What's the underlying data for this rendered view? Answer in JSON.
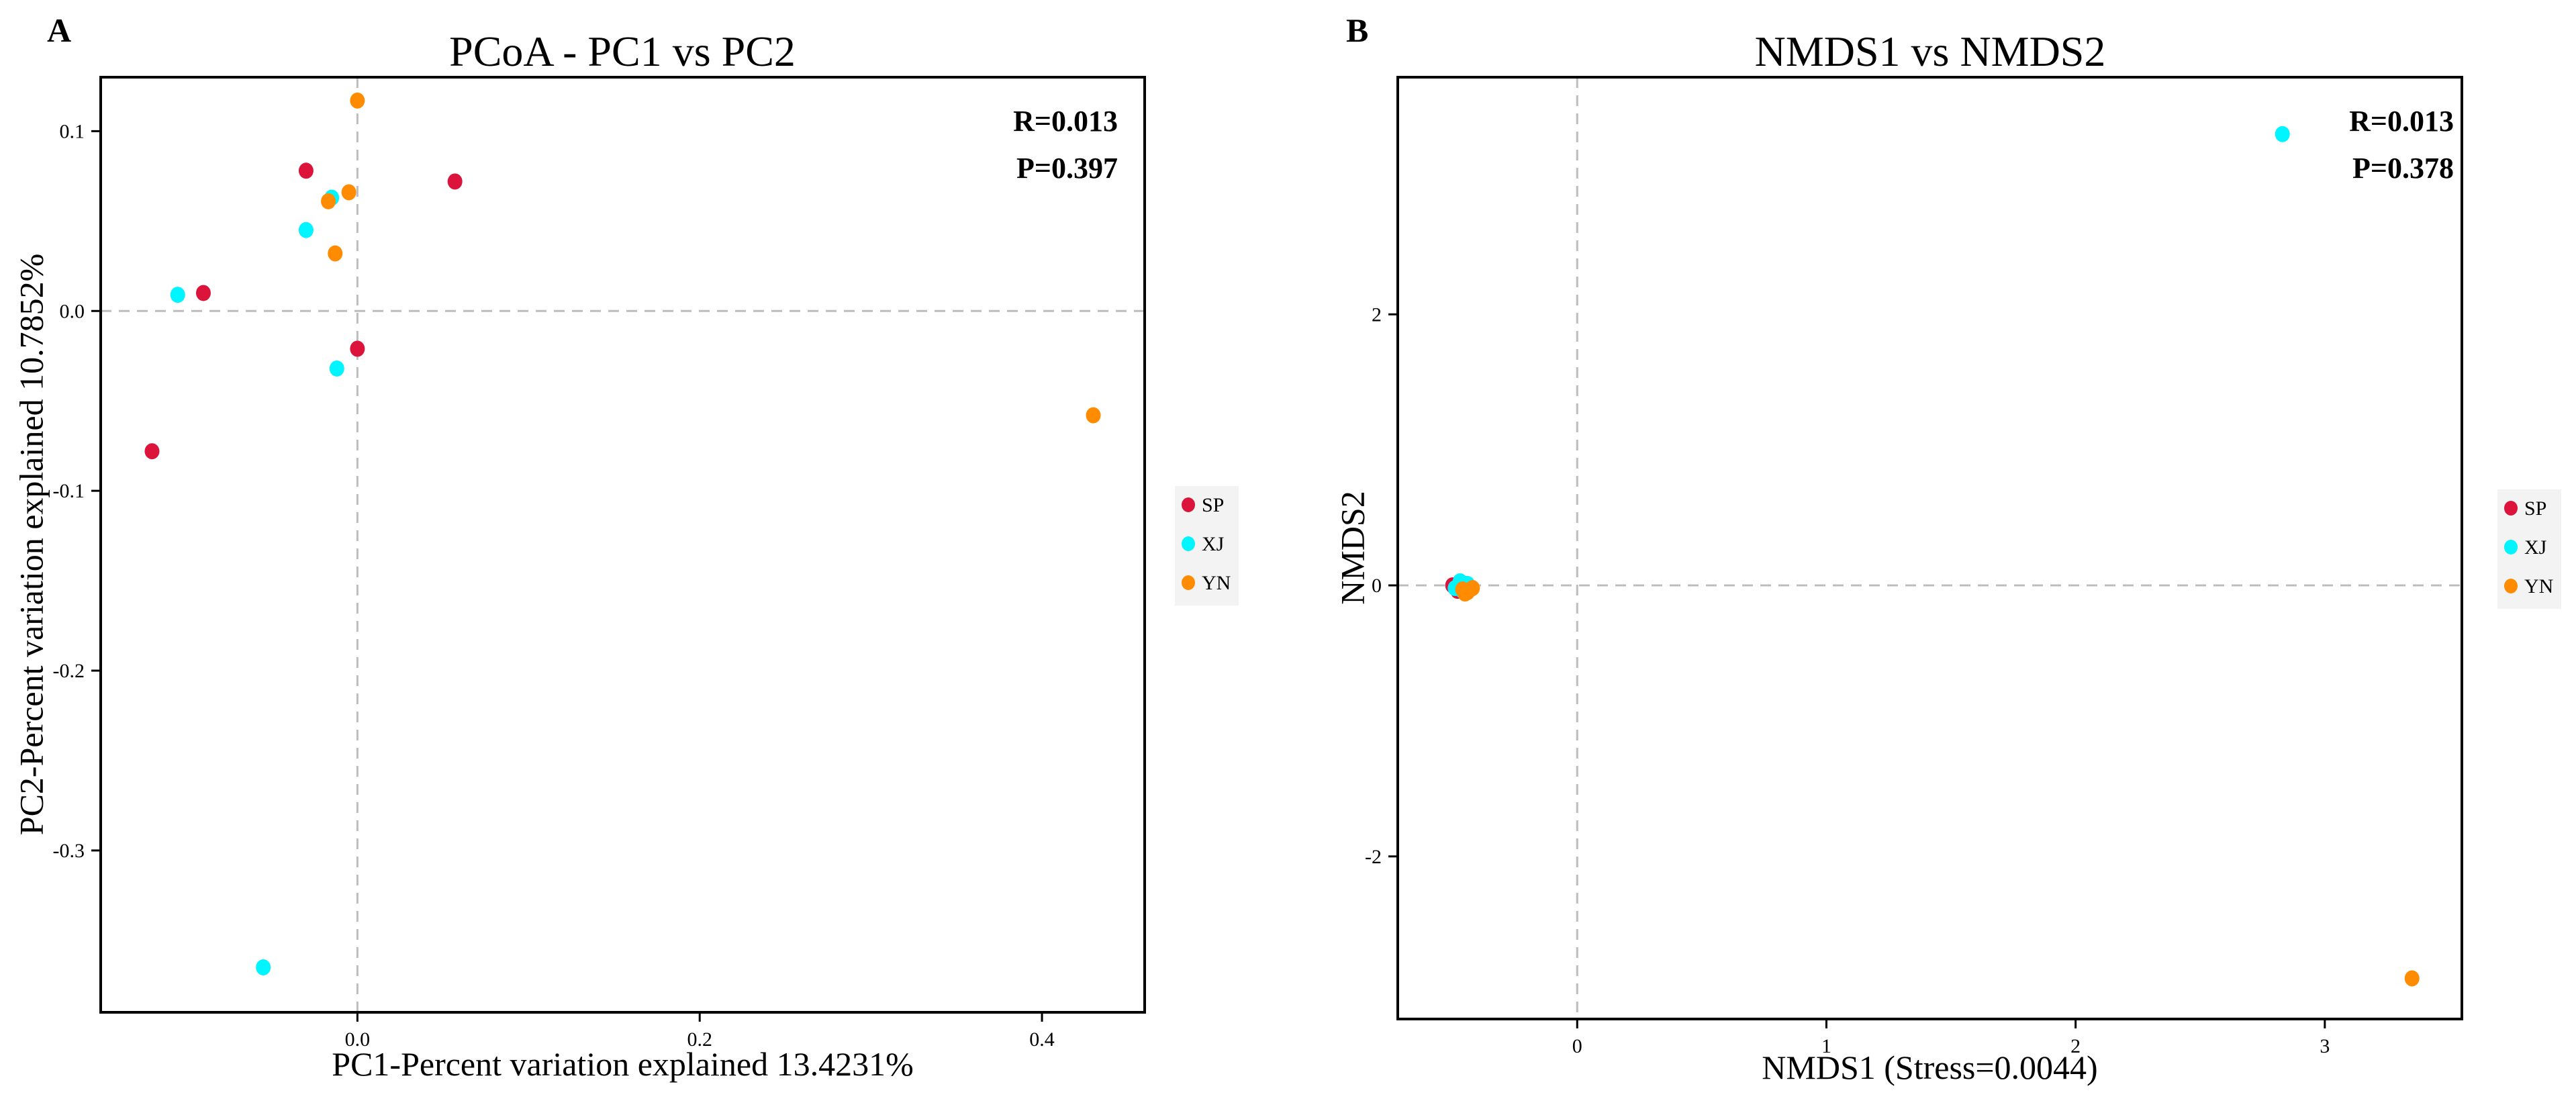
{
  "chart_data": [
    {
      "type": "scatter",
      "panel": "A",
      "title": "PCoA - PC1 vs PC2",
      "xlabel": "PC1-Percent variation explained 13.4231%",
      "ylabel": "PC2-Percent variation explained 10.7852%",
      "xlim": [
        -0.15,
        0.46
      ],
      "ylim": [
        -0.39,
        0.13
      ],
      "xticks": [
        0.0,
        0.2,
        0.4
      ],
      "xtick_labels": [
        "0.0",
        "0.2",
        "0.4"
      ],
      "yticks": [
        0.1,
        0.0,
        -0.1,
        -0.2,
        -0.3
      ],
      "ytick_labels": [
        "0.1",
        "0.0",
        "-0.1",
        "-0.2",
        "-0.3"
      ],
      "reference_lines": {
        "x": 0,
        "y": 0
      },
      "annotations": [
        "R=0.013",
        "P=0.397"
      ],
      "legend_position": "right",
      "series": [
        {
          "name": "SP",
          "color": "#dc143c",
          "points": [
            [
              -0.03,
              0.078
            ],
            [
              -0.09,
              0.01
            ],
            [
              0.057,
              0.072
            ],
            [
              -0.0,
              -0.021
            ],
            [
              -0.12,
              -0.078
            ]
          ]
        },
        {
          "name": "XJ",
          "color": "#00f5ff",
          "points": [
            [
              -0.105,
              0.009
            ],
            [
              -0.015,
              0.063
            ],
            [
              -0.03,
              0.045
            ],
            [
              -0.012,
              -0.032
            ],
            [
              -0.055,
              -0.365
            ]
          ]
        },
        {
          "name": "YN",
          "color": "#ff8c00",
          "points": [
            [
              0.0,
              0.117
            ],
            [
              -0.017,
              0.061
            ],
            [
              -0.005,
              0.066
            ],
            [
              -0.013,
              0.032
            ],
            [
              0.43,
              -0.058
            ]
          ]
        }
      ]
    },
    {
      "type": "scatter",
      "panel": "B",
      "title": "NMDS1 vs NMDS2",
      "xlabel": "NMDS1 (Stress=0.0044)",
      "ylabel": "NMDS2",
      "xlim": [
        -0.72,
        3.55
      ],
      "ylim": [
        -3.2,
        3.75
      ],
      "xticks": [
        0,
        1,
        2,
        3
      ],
      "xtick_labels": [
        "0",
        "1",
        "2",
        "3"
      ],
      "yticks": [
        2,
        0,
        -2
      ],
      "ytick_labels": [
        "2",
        "0",
        "-2"
      ],
      "reference_lines": {
        "x": 0,
        "y": 0
      },
      "annotations": [
        "R=0.013",
        "P=0.378"
      ],
      "legend_position": "right",
      "series": [
        {
          "name": "SP",
          "color": "#dc143c",
          "points": [
            [
              -0.5,
              0.0
            ],
            [
              -0.47,
              -0.02
            ],
            [
              -0.45,
              0.01
            ],
            [
              -0.43,
              -0.03
            ],
            [
              -0.48,
              -0.04
            ]
          ]
        },
        {
          "name": "XJ",
          "color": "#00f5ff",
          "points": [
            [
              -0.49,
              -0.02
            ],
            [
              -0.46,
              -0.04
            ],
            [
              -0.44,
              0.01
            ],
            [
              -0.47,
              0.03
            ],
            [
              2.83,
              3.33
            ]
          ]
        },
        {
          "name": "YN",
          "color": "#ff8c00",
          "points": [
            [
              -0.46,
              -0.03
            ],
            [
              -0.44,
              -0.05
            ],
            [
              -0.42,
              -0.02
            ],
            [
              -0.45,
              -0.06
            ],
            [
              3.35,
              -2.9
            ]
          ]
        }
      ]
    }
  ]
}
